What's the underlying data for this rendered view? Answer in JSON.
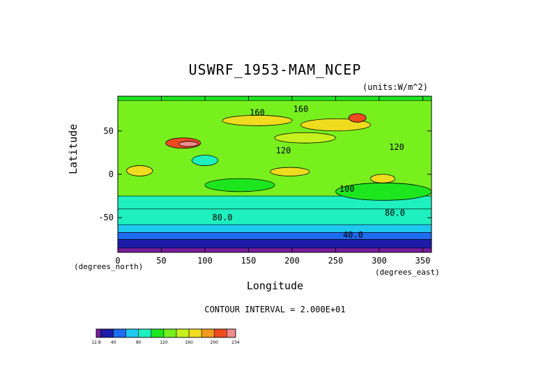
{
  "chart_data": {
    "type": "heatmap",
    "title": "USWRF_1953-MAM_NCEP",
    "units": "(units:W/m^2)",
    "xlabel": "Longitude",
    "ylabel": "Latitude",
    "x_unit_label": "(degrees_east)",
    "y_unit_label": "(degrees_north)",
    "xlim": [
      0,
      360
    ],
    "ylim": [
      -90,
      90
    ],
    "x_ticks": [
      0,
      50,
      100,
      150,
      200,
      250,
      300,
      350
    ],
    "y_ticks": [
      -50,
      0,
      50
    ],
    "contour_interval_text": "CONTOUR INTERVAL = 2.000E+01",
    "contour_labels": [
      {
        "text": "160",
        "x": 160,
        "y": 68
      },
      {
        "text": "160",
        "x": 210,
        "y": 72
      },
      {
        "text": "120",
        "x": 190,
        "y": 24
      },
      {
        "text": "120",
        "x": 320,
        "y": 28
      },
      {
        "text": "100",
        "x": 263,
        "y": -20
      },
      {
        "text": "80.0",
        "x": 120,
        "y": -53
      },
      {
        "text": "80.0",
        "x": 318,
        "y": -48
      },
      {
        "text": "40.0",
        "x": 270,
        "y": -73
      }
    ],
    "colorbar": {
      "labels": [
        "12.8",
        "40",
        "80",
        "120",
        "160",
        "200",
        "234"
      ],
      "label_positions": [
        12.8,
        40,
        80,
        120,
        160,
        200,
        234
      ],
      "bins": [
        {
          "lo": 12.8,
          "hi": 20,
          "color": "#7a1c9c"
        },
        {
          "lo": 20,
          "hi": 40,
          "color": "#1c1ca8"
        },
        {
          "lo": 40,
          "hi": 60,
          "color": "#1e6cf0"
        },
        {
          "lo": 60,
          "hi": 80,
          "color": "#1ec8f0"
        },
        {
          "lo": 80,
          "hi": 100,
          "color": "#1ef0c0"
        },
        {
          "lo": 100,
          "hi": 120,
          "color": "#1ee61e"
        },
        {
          "lo": 120,
          "hi": 140,
          "color": "#78f01e"
        },
        {
          "lo": 140,
          "hi": 160,
          "color": "#c8f01e"
        },
        {
          "lo": 160,
          "hi": 180,
          "color": "#f0dc1e"
        },
        {
          "lo": 180,
          "hi": 200,
          "color": "#f09b1e"
        },
        {
          "lo": 200,
          "hi": 220,
          "color": "#f04b1e"
        },
        {
          "lo": 220,
          "hi": 234,
          "color": "#f08c8c"
        }
      ]
    },
    "zonal_bands": [
      {
        "lat_min": -90,
        "lat_max": -85,
        "value": 15
      },
      {
        "lat_min": -85,
        "lat_max": -75,
        "value": 30
      },
      {
        "lat_min": -75,
        "lat_max": -67,
        "value": 50
      },
      {
        "lat_min": -67,
        "lat_max": -58,
        "value": 70
      },
      {
        "lat_min": -58,
        "lat_max": -40,
        "value": 90
      },
      {
        "lat_min": -40,
        "lat_max": -25,
        "value": 95
      },
      {
        "lat_min": -25,
        "lat_max": 85,
        "value": 125
      },
      {
        "lat_min": 85,
        "lat_max": 90,
        "value": 110
      }
    ],
    "regions": [
      {
        "lon": [
          180,
          250
        ],
        "lat": [
          36,
          48
        ],
        "value": 150
      },
      {
        "lon": [
          100,
          180
        ],
        "lat": [
          -20,
          -5
        ],
        "value": 110
      },
      {
        "lon": [
          250,
          360
        ],
        "lat": [
          -30,
          -10
        ],
        "value": 110
      },
      {
        "lon": [
          120,
          200
        ],
        "lat": [
          56,
          68
        ],
        "value": 170
      },
      {
        "lon": [
          210,
          290
        ],
        "lat": [
          50,
          64
        ],
        "value": 165
      },
      {
        "lon": [
          10,
          40
        ],
        "lat": [
          -2,
          10
        ],
        "value": 170
      },
      {
        "lon": [
          175,
          220
        ],
        "lat": [
          -2,
          8
        ],
        "value": 170
      },
      {
        "lon": [
          290,
          318
        ],
        "lat": [
          -10,
          0
        ],
        "value": 170
      },
      {
        "lon": [
          265,
          285
        ],
        "lat": [
          60,
          70
        ],
        "value": 205
      },
      {
        "lon": [
          85,
          115
        ],
        "lat": [
          10,
          22
        ],
        "value": 90
      },
      {
        "lon": [
          55,
          95
        ],
        "lat": [
          30,
          42
        ],
        "value": 200
      },
      {
        "lon": [
          70,
          92
        ],
        "lat": [
          32,
          38
        ],
        "value": 225
      }
    ]
  }
}
